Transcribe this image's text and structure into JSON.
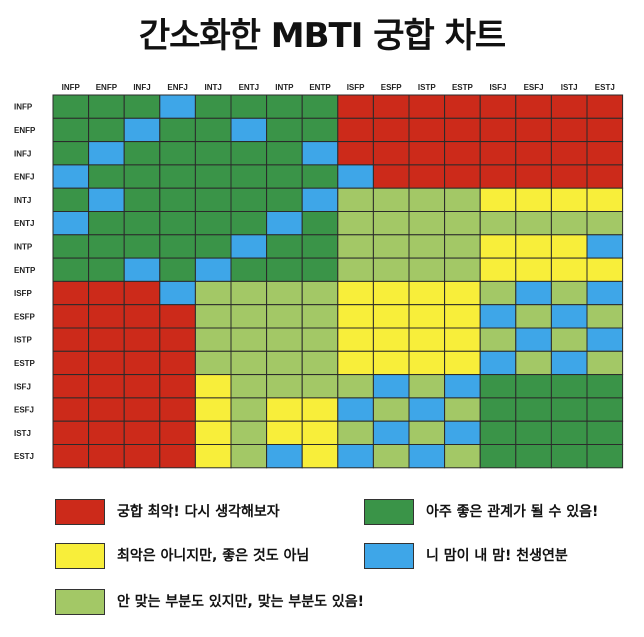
{
  "title": "간소화한 MBTI 궁합 차트",
  "chart_data": {
    "type": "heatmap",
    "types": [
      "INFP",
      "ENFP",
      "INFJ",
      "ENFJ",
      "INTJ",
      "ENTJ",
      "INTP",
      "ENTP",
      "ISFP",
      "ESFP",
      "ISTP",
      "ESTP",
      "ISFJ",
      "ESFJ",
      "ISTJ",
      "ESTJ"
    ],
    "colors": {
      "R": "#cc2a1a",
      "G": "#3a9448",
      "Y": "#f8ee3a",
      "L": "#a3c866",
      "B": "#3ea6e8"
    },
    "matrix": [
      "GGGBGGGGRRRRRRRR",
      "GGBGGBGGRRRRRRRR",
      "GBGGGGGBRRRRRRRR",
      "BGGGGGGGBRRRRRRR",
      "GBGGGGGBLLLLYYYY",
      "BGGGGGBGLLLLLLLL",
      "GGGGGBGGLLLLYYYB",
      "GGBGBGGGLLLLYYYY",
      "RRRBLLLLYYYYLBLB",
      "RRRRLLLLYYYYBLBL",
      "RRRRLLLLYYYYLBLB",
      "RRRRLLLLYYYYBLBL",
      "RRRRYLLLLBLBGGGG",
      "RRRRYLYYBLBLGGGG",
      "RRRRYLYYLBLBGGGG",
      "RRRRYLBYBLBLGGGG"
    ],
    "legend": [
      {
        "key": "R",
        "label": "궁합 최악! 다시 생각해보자"
      },
      {
        "key": "G",
        "label": "아주 좋은 관계가 될 수 있음!"
      },
      {
        "key": "Y",
        "label": "최악은 아니지만, 좋은 것도 아님"
      },
      {
        "key": "B",
        "label": "니 맘이 내 맘! 천생연분"
      },
      {
        "key": "L",
        "label": "안 맞는 부분도 있지만, 맞는 부분도 있음!"
      }
    ]
  }
}
